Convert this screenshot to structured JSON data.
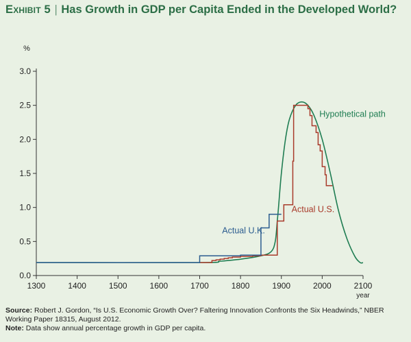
{
  "header": {
    "exhibit": "Exhibit 5",
    "separator": "|",
    "title": "Has Growth in GDP per Capita Ended in the Developed World?"
  },
  "chart_data": {
    "type": "line",
    "title": "Has Growth in GDP per Capita Ended in the Developed World?",
    "xlabel": "year",
    "ylabel": "%",
    "xlim": [
      1300,
      2100
    ],
    "ylim": [
      0,
      3.0
    ],
    "x_ticks": [
      1300,
      1400,
      1500,
      1600,
      1700,
      1800,
      1900,
      2000,
      2100
    ],
    "y_ticks": [
      "0.0",
      "0.5",
      "1.0",
      "1.5",
      "2.0",
      "2.5",
      "3.0"
    ],
    "grid": false,
    "colors": {
      "uk": "#2b5c8f",
      "us": "#a83a2a",
      "hypothetical": "#1f7d52",
      "axis": "#333333",
      "title": "#2c6e46"
    },
    "series": [
      {
        "name": "Actual U.K.",
        "style": "step",
        "points": [
          [
            1300,
            0.19
          ],
          [
            1700,
            0.19
          ],
          [
            1700,
            0.29
          ],
          [
            1800,
            0.29
          ],
          [
            1800,
            0.3
          ],
          [
            1850,
            0.3
          ],
          [
            1850,
            0.7
          ],
          [
            1870,
            0.7
          ],
          [
            1870,
            0.9
          ],
          [
            1900,
            0.9
          ]
        ]
      },
      {
        "name": "Actual U.S.",
        "style": "step",
        "points": [
          [
            1700,
            0.19
          ],
          [
            1730,
            0.19
          ],
          [
            1730,
            0.22
          ],
          [
            1740,
            0.22
          ],
          [
            1740,
            0.23
          ],
          [
            1750,
            0.23
          ],
          [
            1750,
            0.24
          ],
          [
            1760,
            0.24
          ],
          [
            1760,
            0.25
          ],
          [
            1770,
            0.25
          ],
          [
            1770,
            0.26
          ],
          [
            1780,
            0.26
          ],
          [
            1780,
            0.27
          ],
          [
            1800,
            0.27
          ],
          [
            1800,
            0.28
          ],
          [
            1830,
            0.28
          ],
          [
            1830,
            0.29
          ],
          [
            1850,
            0.29
          ],
          [
            1850,
            0.3
          ],
          [
            1890,
            0.3
          ],
          [
            1890,
            0.8
          ],
          [
            1906,
            0.8
          ],
          [
            1906,
            1.04
          ],
          [
            1928,
            1.04
          ],
          [
            1928,
            1.68
          ],
          [
            1930,
            1.68
          ],
          [
            1930,
            2.5
          ],
          [
            1965,
            2.5
          ],
          [
            1965,
            2.45
          ],
          [
            1970,
            2.45
          ],
          [
            1970,
            2.35
          ],
          [
            1975,
            2.35
          ],
          [
            1975,
            2.2
          ],
          [
            1985,
            2.2
          ],
          [
            1985,
            2.1
          ],
          [
            1990,
            2.1
          ],
          [
            1990,
            1.92
          ],
          [
            1995,
            1.92
          ],
          [
            1995,
            1.83
          ],
          [
            2000,
            1.83
          ],
          [
            2000,
            1.6
          ],
          [
            2007,
            1.6
          ],
          [
            2007,
            1.48
          ],
          [
            2010,
            1.48
          ],
          [
            2010,
            1.32
          ],
          [
            2025,
            1.32
          ]
        ]
      },
      {
        "name": "Hypothetical path",
        "style": "smooth",
        "points": [
          [
            1300,
            0.19
          ],
          [
            1700,
            0.19
          ],
          [
            1750,
            0.21
          ],
          [
            1800,
            0.24
          ],
          [
            1850,
            0.29
          ],
          [
            1875,
            0.35
          ],
          [
            1885,
            0.5
          ],
          [
            1890,
            0.8
          ],
          [
            1893,
            1.0
          ],
          [
            1900,
            1.5
          ],
          [
            1910,
            2.0
          ],
          [
            1920,
            2.3
          ],
          [
            1935,
            2.5
          ],
          [
            1950,
            2.55
          ],
          [
            1965,
            2.5
          ],
          [
            1980,
            2.35
          ],
          [
            2000,
            2.0
          ],
          [
            2020,
            1.5
          ],
          [
            2040,
            0.95
          ],
          [
            2060,
            0.55
          ],
          [
            2080,
            0.28
          ],
          [
            2093,
            0.19
          ],
          [
            2100,
            0.19
          ]
        ]
      }
    ],
    "annotations": [
      {
        "text": "Actual U.K.",
        "x": 1755,
        "y": 0.62
      },
      {
        "text": "Actual U.S.",
        "x": 1925,
        "y": 0.93
      },
      {
        "text": "Hypothetical path",
        "x": 1993,
        "y": 2.33
      }
    ]
  },
  "footer": {
    "source_label": "Source:",
    "source_text": "Robert J. Gordon, “Is U.S. Economic Growth Over? Faltering Innovation Confronts the Six Headwinds,” NBER Working Paper 18315, August 2012.",
    "note_label": "Note:",
    "note_text": "Data show annual percentage growth in GDP per capita."
  }
}
